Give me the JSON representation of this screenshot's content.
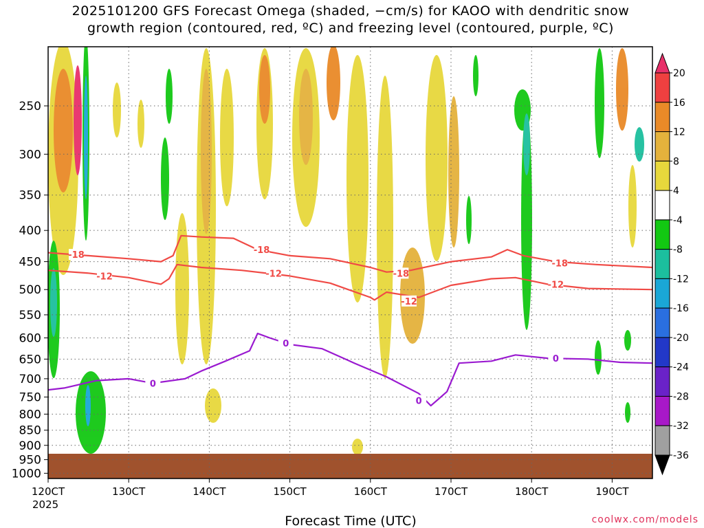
{
  "chart_data": {
    "type": "heatmap",
    "title_lines": [
      "2025101200 GFS Forecast Omega (shaded, −cm/s) for KAOO with dendritic snow",
      "growth region (contoured, red, ºC) and freezing level (contoured, purple, ºC)"
    ],
    "xlabel": "Forecast Time (UTC)",
    "x_year_label": "2025",
    "x_ticks": [
      "120CT",
      "130CT",
      "140CT",
      "150CT",
      "160CT",
      "170CT",
      "180CT",
      "190CT"
    ],
    "x_tick_days": [
      12,
      13,
      14,
      15,
      16,
      17,
      18,
      19
    ],
    "xlim_days": [
      12,
      19.5
    ],
    "y_ticks": [
      250,
      300,
      350,
      400,
      450,
      500,
      550,
      600,
      650,
      700,
      750,
      800,
      850,
      900,
      950,
      1000
    ],
    "ylim_hpa": [
      200,
      1020
    ],
    "y_scale": "log-pressure",
    "grid": true,
    "colorbar": {
      "levels": [
        20,
        16,
        12,
        8,
        4,
        -4,
        -8,
        -12,
        -16,
        -20,
        -24,
        -28,
        -32,
        -36
      ],
      "colors": [
        "#e8306a",
        "#ef4040",
        "#e98a28",
        "#e4b23c",
        "#e7d83c",
        "#ffffff",
        "#12c812",
        "#1cbf9e",
        "#1aa7d6",
        "#2a6fe0",
        "#2238c8",
        "#6a22c8",
        "#a818c8",
        "#a0a0a0",
        "#000000"
      ]
    },
    "contours": [
      {
        "name": "-18 ºC",
        "color": "#f04a45",
        "points": [
          [
            12.0,
            435
          ],
          [
            12.5,
            440
          ],
          [
            13.0,
            445
          ],
          [
            13.4,
            450
          ],
          [
            13.55,
            440
          ],
          [
            13.65,
            408
          ],
          [
            13.9,
            410
          ],
          [
            14.3,
            412
          ],
          [
            14.6,
            430
          ],
          [
            15.0,
            440
          ],
          [
            15.5,
            445
          ],
          [
            16.0,
            460
          ],
          [
            16.2,
            468
          ],
          [
            16.5,
            465
          ],
          [
            17.0,
            450
          ],
          [
            17.5,
            442
          ],
          [
            17.7,
            430
          ],
          [
            17.9,
            440
          ],
          [
            18.3,
            450
          ],
          [
            18.8,
            455
          ],
          [
            19.5,
            460
          ]
        ],
        "labels": [
          {
            "text": "-18",
            "at": [
              12.35,
              438
            ]
          },
          {
            "text": "-18",
            "at": [
              14.65,
              430
            ]
          },
          {
            "text": "-18",
            "at": [
              16.38,
              470
            ]
          },
          {
            "text": "-18",
            "at": [
              18.35,
              452
            ]
          }
        ]
      },
      {
        "name": "-12 ºC",
        "color": "#f04a45",
        "points": [
          [
            12.0,
            465
          ],
          [
            12.5,
            470
          ],
          [
            13.0,
            478
          ],
          [
            13.4,
            490
          ],
          [
            13.5,
            480
          ],
          [
            13.6,
            455
          ],
          [
            13.9,
            460
          ],
          [
            14.4,
            465
          ],
          [
            15.0,
            475
          ],
          [
            15.5,
            488
          ],
          [
            16.0,
            515
          ],
          [
            16.05,
            520
          ],
          [
            16.2,
            505
          ],
          [
            16.6,
            515
          ],
          [
            17.0,
            492
          ],
          [
            17.5,
            480
          ],
          [
            17.8,
            478
          ],
          [
            18.2,
            490
          ],
          [
            18.7,
            498
          ],
          [
            19.5,
            500
          ]
        ],
        "labels": [
          {
            "text": "-12",
            "at": [
              12.7,
              475
            ]
          },
          {
            "text": "-12",
            "at": [
              14.8,
              470
            ]
          },
          {
            "text": "-12",
            "at": [
              16.48,
              522
            ]
          },
          {
            "text": "-12",
            "at": [
              18.3,
              490
            ]
          }
        ]
      },
      {
        "name": "0 ºC",
        "color": "#9a1ad0",
        "points": [
          [
            12.0,
            730
          ],
          [
            12.2,
            725
          ],
          [
            12.6,
            705
          ],
          [
            13.0,
            700
          ],
          [
            13.3,
            712
          ],
          [
            13.7,
            700
          ],
          [
            13.9,
            680
          ],
          [
            14.2,
            655
          ],
          [
            14.5,
            630
          ],
          [
            14.6,
            590
          ],
          [
            14.75,
            600
          ],
          [
            15.0,
            615
          ],
          [
            15.4,
            625
          ],
          [
            15.8,
            660
          ],
          [
            16.2,
            695
          ],
          [
            16.6,
            740
          ],
          [
            16.75,
            775
          ],
          [
            16.95,
            735
          ],
          [
            17.1,
            660
          ],
          [
            17.5,
            655
          ],
          [
            17.8,
            640
          ],
          [
            18.2,
            648
          ],
          [
            18.7,
            650
          ],
          [
            19.1,
            658
          ],
          [
            19.5,
            660
          ]
        ],
        "labels": [
          {
            "text": "0",
            "at": [
              13.3,
              712
            ]
          },
          {
            "text": "0",
            "at": [
              14.95,
              612
            ]
          },
          {
            "text": "0",
            "at": [
              16.6,
              760
            ]
          },
          {
            "text": "0",
            "at": [
              18.3,
              648
            ]
          }
        ]
      }
    ],
    "annotations": [
      "coolwx.com/models"
    ]
  }
}
